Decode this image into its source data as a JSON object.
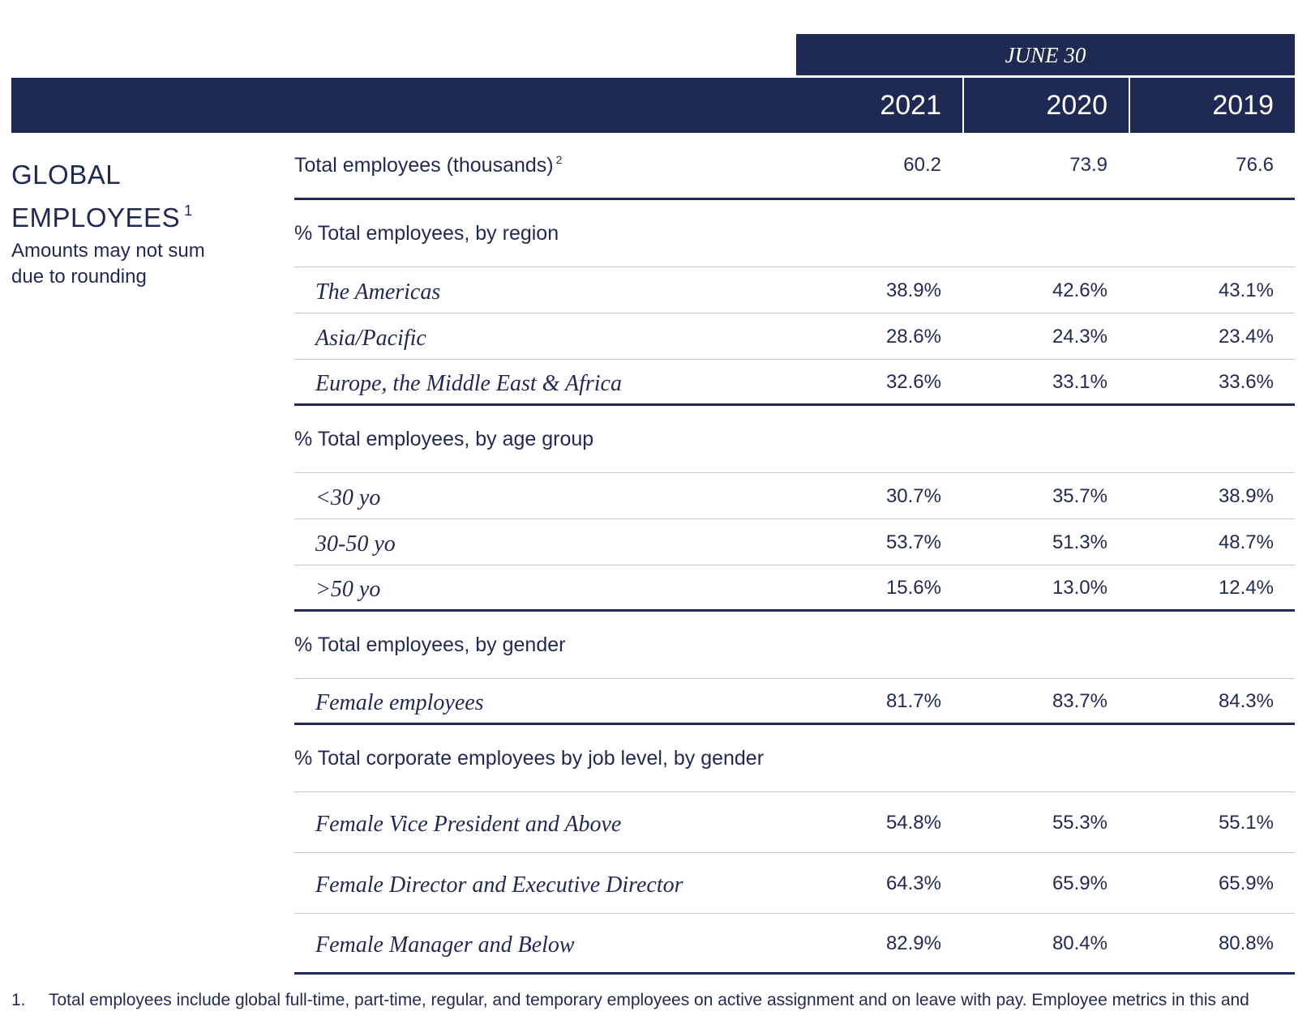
{
  "header": {
    "period": "JUNE 30",
    "years": [
      "2021",
      "2020",
      "2019"
    ]
  },
  "section": {
    "title_line1": "GLOBAL",
    "title_line2": "EMPLOYEES",
    "title_sup": "1",
    "note_line1": "Amounts may not sum",
    "note_line2": "due to rounding"
  },
  "table": {
    "total": {
      "label": "Total employees (thousands)",
      "sup": "2",
      "values": [
        "60.2",
        "73.9",
        "76.6"
      ]
    },
    "region": {
      "label": "% Total employees, by region",
      "rows": [
        {
          "label": "The Americas",
          "values": [
            "38.9%",
            "42.6%",
            "43.1%"
          ]
        },
        {
          "label": "Asia/Pacific",
          "values": [
            "28.6%",
            "24.3%",
            "23.4%"
          ]
        },
        {
          "label": "Europe, the Middle East & Africa",
          "values": [
            "32.6%",
            "33.1%",
            "33.6%"
          ]
        }
      ]
    },
    "age": {
      "label": "% Total employees, by age group",
      "rows": [
        {
          "label": "<30 yo",
          "values": [
            "30.7%",
            "35.7%",
            "38.9%"
          ]
        },
        {
          "label": "30-50 yo",
          "values": [
            "53.7%",
            "51.3%",
            "48.7%"
          ]
        },
        {
          "label": ">50 yo",
          "values": [
            "15.6%",
            "13.0%",
            "12.4%"
          ]
        }
      ]
    },
    "gender": {
      "label": "% Total employees, by gender",
      "rows": [
        {
          "label": "Female employees",
          "values": [
            "81.7%",
            "83.7%",
            "84.3%"
          ]
        }
      ]
    },
    "job_level": {
      "label": "% Total corporate employees by job level, by gender",
      "rows": [
        {
          "label": "Female Vice President and Above",
          "values": [
            "54.8%",
            "55.3%",
            "55.1%"
          ]
        },
        {
          "label": "Female Director and Executive Director",
          "values": [
            "64.3%",
            "65.9%",
            "65.9%"
          ]
        },
        {
          "label": "Female Manager and Below",
          "values": [
            "82.9%",
            "80.4%",
            "80.8%"
          ]
        }
      ]
    }
  },
  "footnote": {
    "number": "1.",
    "text": "Total employees include global full-time, part-time, regular, and temporary employees on active assignment and on leave with pay. Employee metrics in this and"
  }
}
